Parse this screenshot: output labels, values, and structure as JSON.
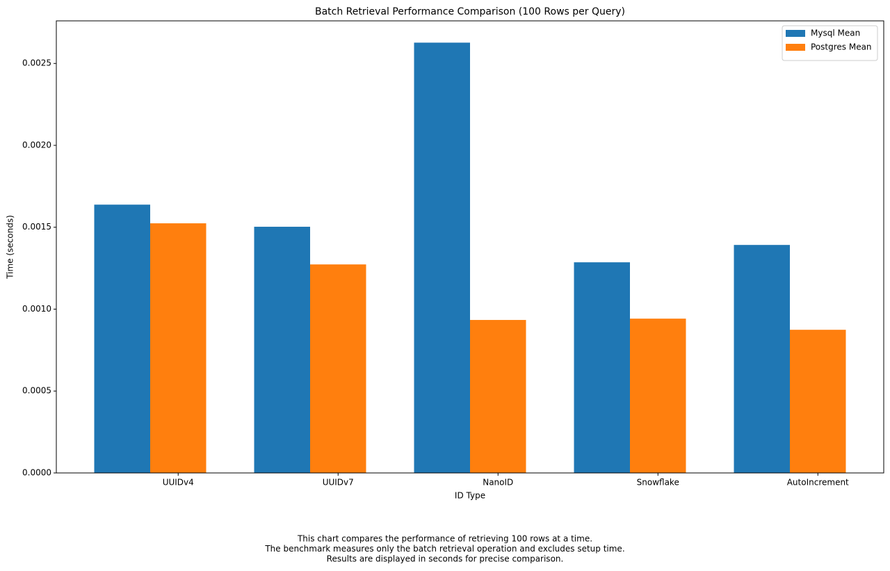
{
  "chart_data": {
    "type": "bar",
    "title": "Batch Retrieval Performance Comparison (100 Rows per Query)",
    "x_label": "ID Type",
    "y_label": "Time (seconds)",
    "categories": [
      "UUIDv4",
      "UUIDv7",
      "NanoID",
      "Snowflake",
      "AutoIncrement"
    ],
    "series": [
      {
        "name": "Mysql Mean",
        "color": "#1f77b4",
        "values": [
          0.001638,
          0.001503,
          0.002627,
          0.001286,
          0.001392
        ]
      },
      {
        "name": "Postgres Mean",
        "color": "#ff7f0e",
        "values": [
          0.001524,
          0.001273,
          0.000934,
          0.000942,
          0.000874
        ]
      }
    ],
    "ylim": [
      0,
      0.00276
    ],
    "yticks": [
      {
        "value": 0,
        "label": "0.0000"
      },
      {
        "value": 0.0005,
        "label": "0.0005"
      },
      {
        "value": 0.001,
        "label": "0.0010"
      },
      {
        "value": 0.0015,
        "label": "0.0015"
      },
      {
        "value": 0.002,
        "label": "0.0020"
      },
      {
        "value": 0.0025,
        "label": "0.0025"
      }
    ],
    "legend": "upper right",
    "caption": [
      "This chart compares the performance of retrieving 100 rows at a time.",
      "The benchmark measures only the batch retrieval operation and excludes setup time.",
      "Results are displayed in seconds for precise comparison."
    ]
  }
}
